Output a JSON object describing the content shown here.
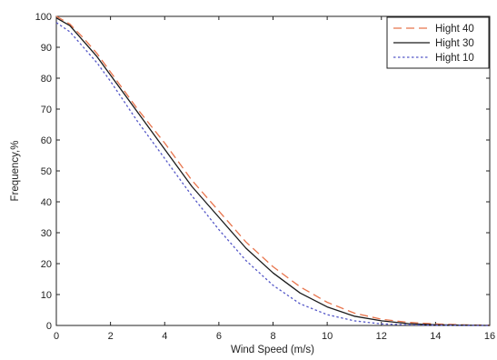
{
  "chart_data": {
    "type": "line",
    "xlabel": "Wind Speed (m/s)",
    "ylabel": "Frequency,%",
    "xlim": [
      0,
      16
    ],
    "ylim": [
      0,
      100
    ],
    "xticks": [
      0,
      2,
      4,
      6,
      8,
      10,
      12,
      14,
      16
    ],
    "yticks": [
      0,
      10,
      20,
      30,
      40,
      50,
      60,
      70,
      80,
      90,
      100
    ],
    "grid": false,
    "legend_position": "top-right",
    "series": [
      {
        "name": "Hight 40",
        "color": "#e8744c",
        "style": "dashed",
        "x": [
          0,
          0.5,
          1,
          1.5,
          2,
          3,
          4,
          5,
          6,
          7,
          8,
          9,
          10,
          11,
          12,
          13,
          14,
          15,
          16
        ],
        "y": [
          100,
          97.5,
          93,
          88,
          82,
          70,
          59,
          47,
          37,
          27,
          19,
          12.5,
          7.5,
          4,
          2,
          1,
          0.5,
          0.2,
          0.1
        ]
      },
      {
        "name": "Hight 30",
        "color": "#1a1a1a",
        "style": "solid",
        "x": [
          0,
          0.5,
          1,
          1.5,
          2,
          3,
          4,
          5,
          6,
          7,
          8,
          9,
          10,
          11,
          12,
          13,
          14,
          15,
          16
        ],
        "y": [
          99.5,
          97,
          92,
          87,
          81,
          69,
          57,
          45,
          35,
          25,
          17,
          10.5,
          6,
          3,
          1.5,
          0.6,
          0.2,
          0.1,
          0
        ]
      },
      {
        "name": "Hight 10",
        "color": "#5558c8",
        "style": "dotted",
        "x": [
          0,
          0.5,
          1,
          1.5,
          2,
          3,
          4,
          5,
          6,
          7,
          8,
          9,
          10,
          11,
          12,
          13,
          14,
          15,
          16
        ],
        "y": [
          98,
          95,
          90,
          85,
          79,
          66,
          54,
          42,
          31,
          21,
          13,
          7,
          3.5,
          1.5,
          0.5,
          0.2,
          0.1,
          0,
          0
        ]
      }
    ]
  }
}
